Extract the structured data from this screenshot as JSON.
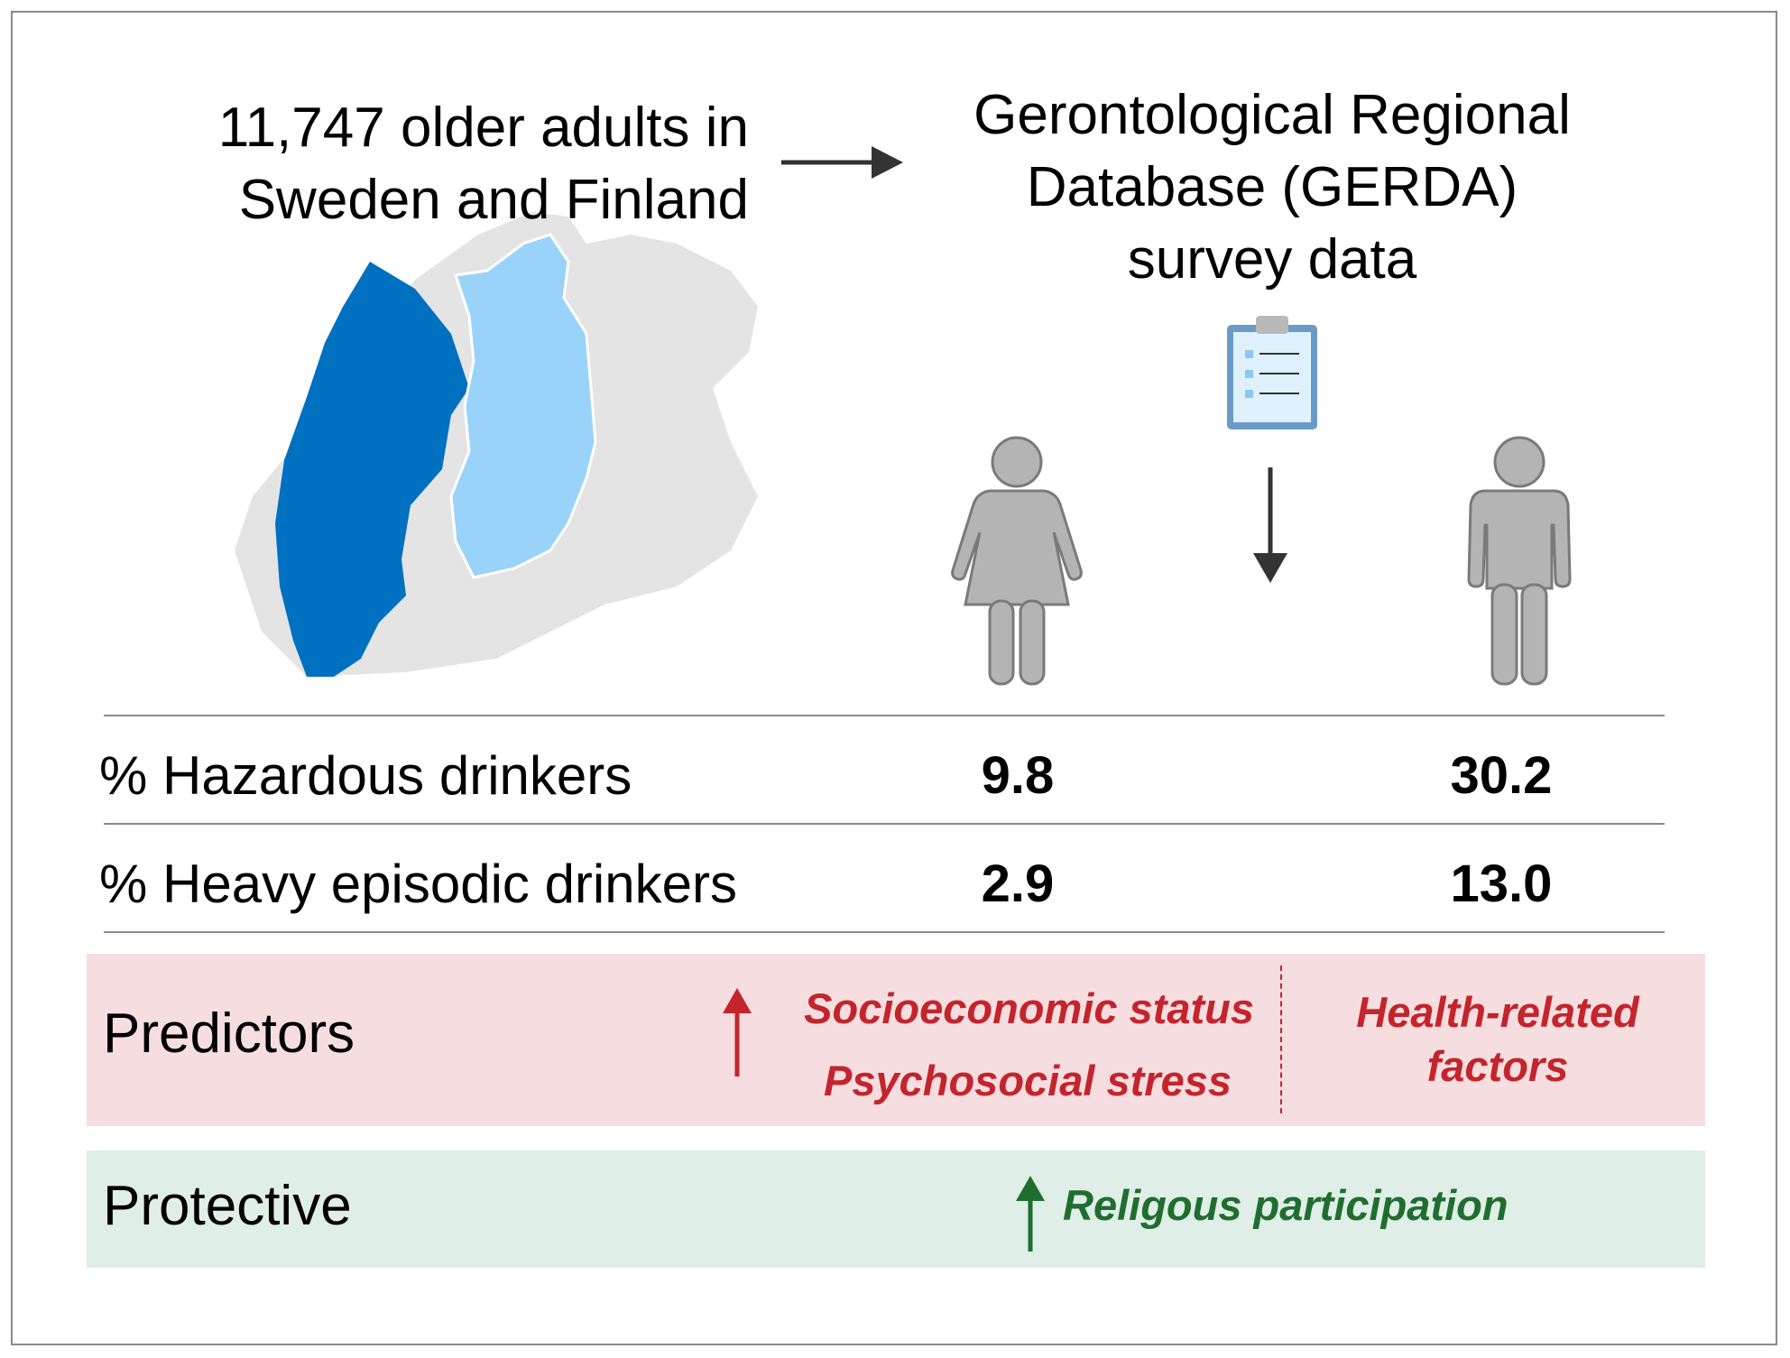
{
  "header": {
    "population_line1": "11,747 older adults in",
    "population_line2": "Sweden and Finland",
    "database_line1": "Gerontological Regional",
    "database_line2": "Database (GERDA)",
    "database_line3": "survey data"
  },
  "icons": {
    "arrow": "arrow-right-icon",
    "map": "nordic-map-icon",
    "clipboard": "clipboard-icon",
    "down_arrow": "arrow-down-icon",
    "female": "female-figure-icon",
    "male": "male-figure-icon"
  },
  "colors": {
    "sweden": "#0070c0",
    "finland": "#99d3f9",
    "land": "#e4e4e4",
    "figure": "#b4b4b4",
    "predictor_bg": "#f6dde0",
    "protective_bg": "#dfeee7",
    "predictor_text": "#c4242c",
    "protective_text": "#1f6e2f"
  },
  "table": {
    "rows": [
      {
        "label": "% Hazardous drinkers",
        "women": "9.8",
        "men": "30.2"
      },
      {
        "label": "% Heavy episodic drinkers",
        "women": "2.9",
        "men": "13.0"
      }
    ]
  },
  "predictors": {
    "label": "Predictors",
    "women_line1": "Socioeconomic status",
    "women_line2": "Psychosocial stress",
    "men_line1": "Health-related",
    "men_line2": "factors"
  },
  "protective": {
    "label": "Protective",
    "factor": "Religous participation"
  }
}
